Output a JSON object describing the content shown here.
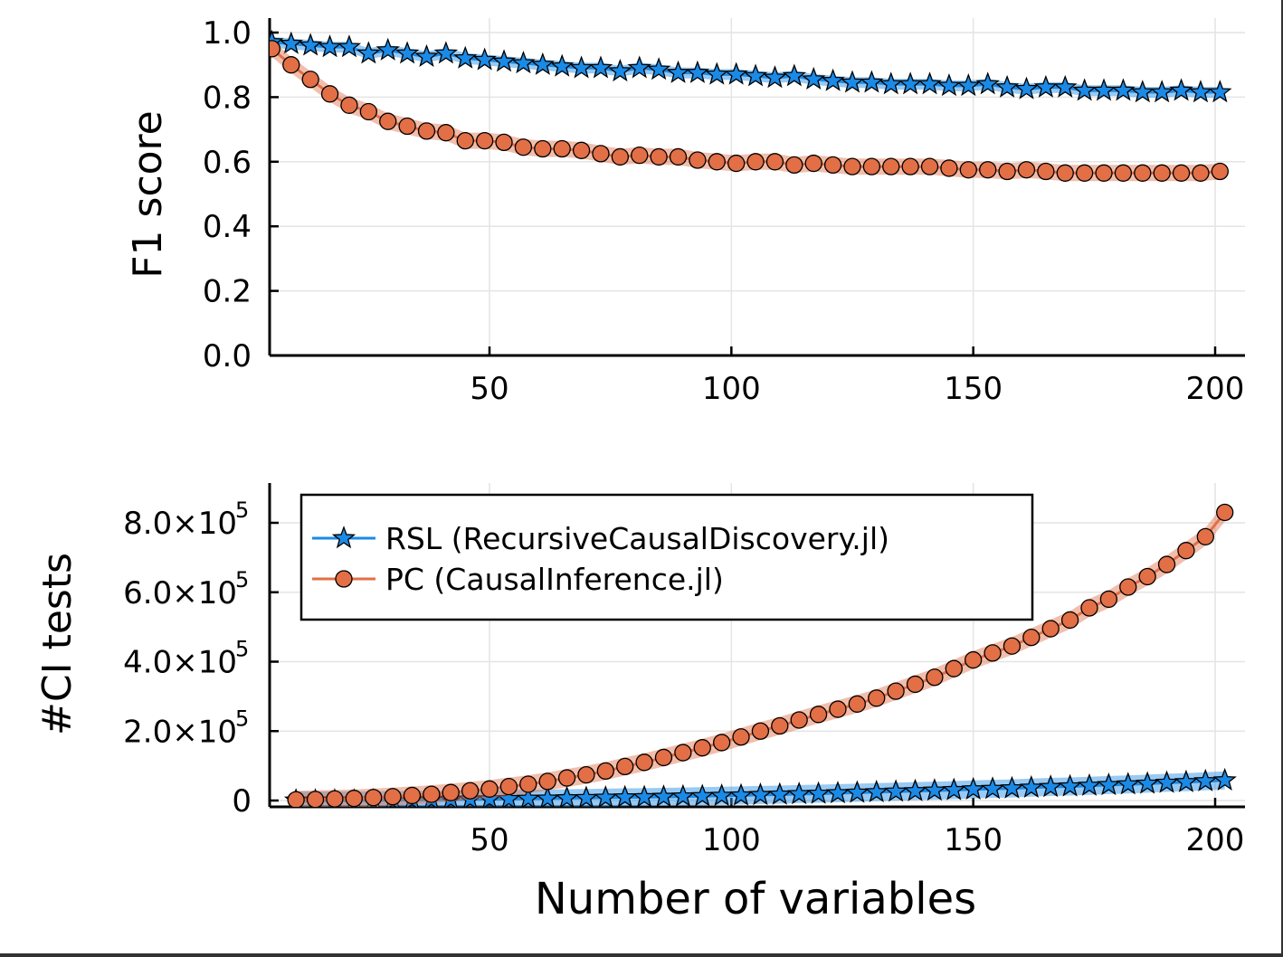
{
  "chart_data": [
    {
      "type": "line",
      "xlabel": "",
      "ylabel": "F1 score",
      "xlim": [
        5,
        205
      ],
      "ylim": [
        0,
        1.0
      ],
      "xticks": [
        50,
        100,
        150,
        200
      ],
      "xtick_labels": [
        "50",
        "100",
        "150",
        "200"
      ],
      "yticks": [
        0,
        0.2,
        0.4,
        0.6,
        0.8,
        1.0
      ],
      "ytick_labels": [
        "0.0",
        "0.2",
        "0.4",
        "0.6",
        "0.8",
        "1.0"
      ],
      "grid": true,
      "x": [
        5,
        9,
        13,
        17,
        21,
        25,
        29,
        33,
        37,
        41,
        45,
        49,
        53,
        57,
        61,
        65,
        69,
        73,
        77,
        81,
        85,
        89,
        93,
        97,
        101,
        105,
        109,
        113,
        117,
        121,
        125,
        129,
        133,
        137,
        141,
        145,
        149,
        153,
        157,
        161,
        165,
        169,
        173,
        177,
        181,
        185,
        189,
        193,
        197,
        201
      ],
      "series": [
        {
          "name": "RSL (RecursiveCausalDiscovery.jl)",
          "color": "#1a8ae6",
          "marker": "star",
          "values": [
            0.97,
            0.965,
            0.96,
            0.955,
            0.955,
            0.935,
            0.945,
            0.935,
            0.925,
            0.935,
            0.92,
            0.915,
            0.91,
            0.905,
            0.9,
            0.895,
            0.89,
            0.89,
            0.88,
            0.89,
            0.885,
            0.875,
            0.875,
            0.87,
            0.87,
            0.865,
            0.86,
            0.865,
            0.855,
            0.85,
            0.845,
            0.845,
            0.84,
            0.84,
            0.84,
            0.835,
            0.835,
            0.84,
            0.83,
            0.825,
            0.83,
            0.83,
            0.82,
            0.82,
            0.82,
            0.815,
            0.815,
            0.82,
            0.815,
            0.815
          ]
        },
        {
          "name": "PC (CausalInference.jl)",
          "color": "#e26f46",
          "marker": "circle",
          "values": [
            0.95,
            0.9,
            0.855,
            0.81,
            0.775,
            0.755,
            0.725,
            0.71,
            0.695,
            0.69,
            0.665,
            0.665,
            0.66,
            0.645,
            0.64,
            0.64,
            0.635,
            0.625,
            0.615,
            0.62,
            0.615,
            0.615,
            0.605,
            0.6,
            0.595,
            0.6,
            0.6,
            0.59,
            0.595,
            0.59,
            0.585,
            0.585,
            0.585,
            0.585,
            0.585,
            0.58,
            0.575,
            0.575,
            0.57,
            0.575,
            0.57,
            0.565,
            0.565,
            0.565,
            0.565,
            0.565,
            0.565,
            0.565,
            0.565,
            0.57
          ]
        }
      ]
    },
    {
      "type": "line",
      "xlabel": "Number of variables",
      "ylabel": "#CI tests",
      "xlim": [
        5,
        205
      ],
      "ylim": [
        -20000,
        910000
      ],
      "xticks": [
        50,
        100,
        150,
        200
      ],
      "xtick_labels": [
        "50",
        "100",
        "150",
        "200"
      ],
      "yticks": [
        0,
        200000,
        400000,
        600000,
        800000
      ],
      "ytick_labels": [
        "0",
        "2.0×10",
        "4.0×10",
        "6.0×10",
        "8.0×10"
      ],
      "ytick_exponent": "5",
      "grid": true,
      "legend": "top-left",
      "x": [
        10,
        14,
        18,
        22,
        26,
        30,
        34,
        38,
        42,
        46,
        50,
        54,
        58,
        62,
        66,
        70,
        74,
        78,
        82,
        86,
        90,
        94,
        98,
        102,
        106,
        110,
        114,
        118,
        122,
        126,
        130,
        134,
        138,
        142,
        146,
        150,
        154,
        158,
        162,
        166,
        170,
        174,
        178,
        182,
        186,
        190,
        194,
        198,
        202
      ],
      "series": [
        {
          "name": "RSL (RecursiveCausalDiscovery.jl)",
          "color": "#1a8ae6",
          "marker": "star",
          "values": [
            0,
            0,
            0,
            0,
            500,
            1000,
            1500,
            2000,
            2500,
            3000,
            3500,
            4000,
            5000,
            5500,
            6500,
            7000,
            8000,
            9000,
            9500,
            10500,
            11500,
            12500,
            13500,
            14500,
            16000,
            17000,
            18500,
            19500,
            21000,
            22500,
            24000,
            25500,
            27000,
            28500,
            30000,
            32000,
            33500,
            35000,
            37000,
            39000,
            40500,
            42500,
            44500,
            46500,
            48500,
            51000,
            53000,
            55500,
            58000
          ]
        },
        {
          "name": "PC (CausalInference.jl)",
          "color": "#e26f46",
          "marker": "circle",
          "values": [
            2000,
            3000,
            4500,
            6000,
            8500,
            11000,
            14500,
            18000,
            23000,
            28000,
            33000,
            40000,
            47000,
            55000,
            65000,
            74000,
            85000,
            98000,
            110000,
            124000,
            138000,
            152000,
            167000,
            183000,
            200000,
            215000,
            232000,
            248000,
            263000,
            278000,
            295000,
            315000,
            335000,
            355000,
            380000,
            405000,
            425000,
            445000,
            470000,
            495000,
            520000,
            555000,
            580000,
            615000,
            645000,
            680000,
            720000,
            760000,
            830000
          ]
        }
      ]
    }
  ]
}
